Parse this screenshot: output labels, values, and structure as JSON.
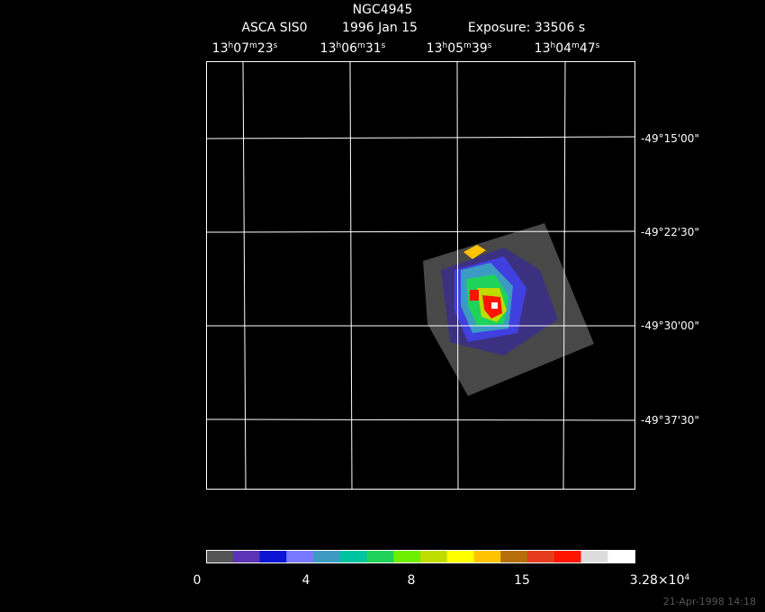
{
  "title": "NGC4945",
  "subtitle": [
    "ASCA SIS0",
    "1996 Jan 15",
    "Exposure: 33506 s"
  ],
  "ra_labels": [
    [
      "13",
      "h",
      "07",
      "m",
      "23",
      "s"
    ],
    [
      "13",
      "h",
      "06",
      "m",
      "31",
      "s"
    ],
    [
      "13",
      "h",
      "05",
      "m",
      "39",
      "s"
    ],
    [
      "13",
      "h",
      "04",
      "m",
      "47",
      "s"
    ]
  ],
  "dec_labels": [
    "-49°15'00\"",
    "-49°22'30\"",
    "-49°30'00\"",
    "-49°37'30\""
  ],
  "colorbar": {
    "colors": [
      "#555555",
      "#5a34b4",
      "#0a14d2",
      "#7878ff",
      "#3c9bc3",
      "#00c3a0",
      "#1ed25a",
      "#6eee00",
      "#bedc00",
      "#ffff00",
      "#ffc300",
      "#b46e0a",
      "#e63c1e",
      "#ff1400",
      "#dcdcdc",
      "#ffffff"
    ],
    "labels": [
      [
        "0"
      ],
      [
        "4"
      ],
      [
        "8"
      ],
      [
        "15"
      ],
      [
        "3.28×10",
        "4"
      ]
    ]
  },
  "timestamp": "21-Apr-1998 14:18"
}
